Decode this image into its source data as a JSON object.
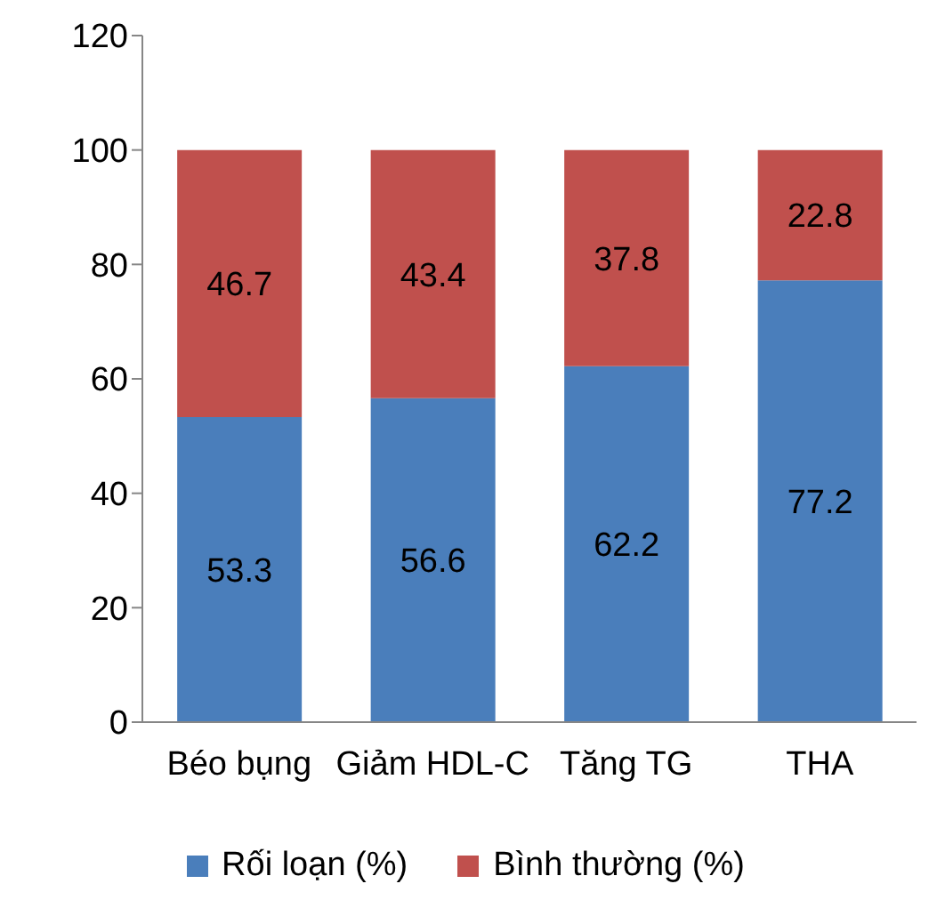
{
  "chart_data": {
    "type": "bar",
    "stacked": true,
    "categories": [
      "Béo bụng",
      "Giảm HDL-C",
      "Tăng TG",
      "THA"
    ],
    "series": [
      {
        "name": "Rối loạn (%)",
        "color": "#4a7ebb",
        "values": [
          53.3,
          56.6,
          62.2,
          77.2
        ]
      },
      {
        "name": "Bình thường (%)",
        "color": "#c0504d",
        "values": [
          46.7,
          43.4,
          37.8,
          22.8
        ]
      }
    ],
    "ylim": [
      0,
      120
    ],
    "yticks": [
      0,
      20,
      40,
      60,
      80,
      100,
      120
    ],
    "grid": false,
    "legend": "bottom",
    "data_labels": true
  }
}
